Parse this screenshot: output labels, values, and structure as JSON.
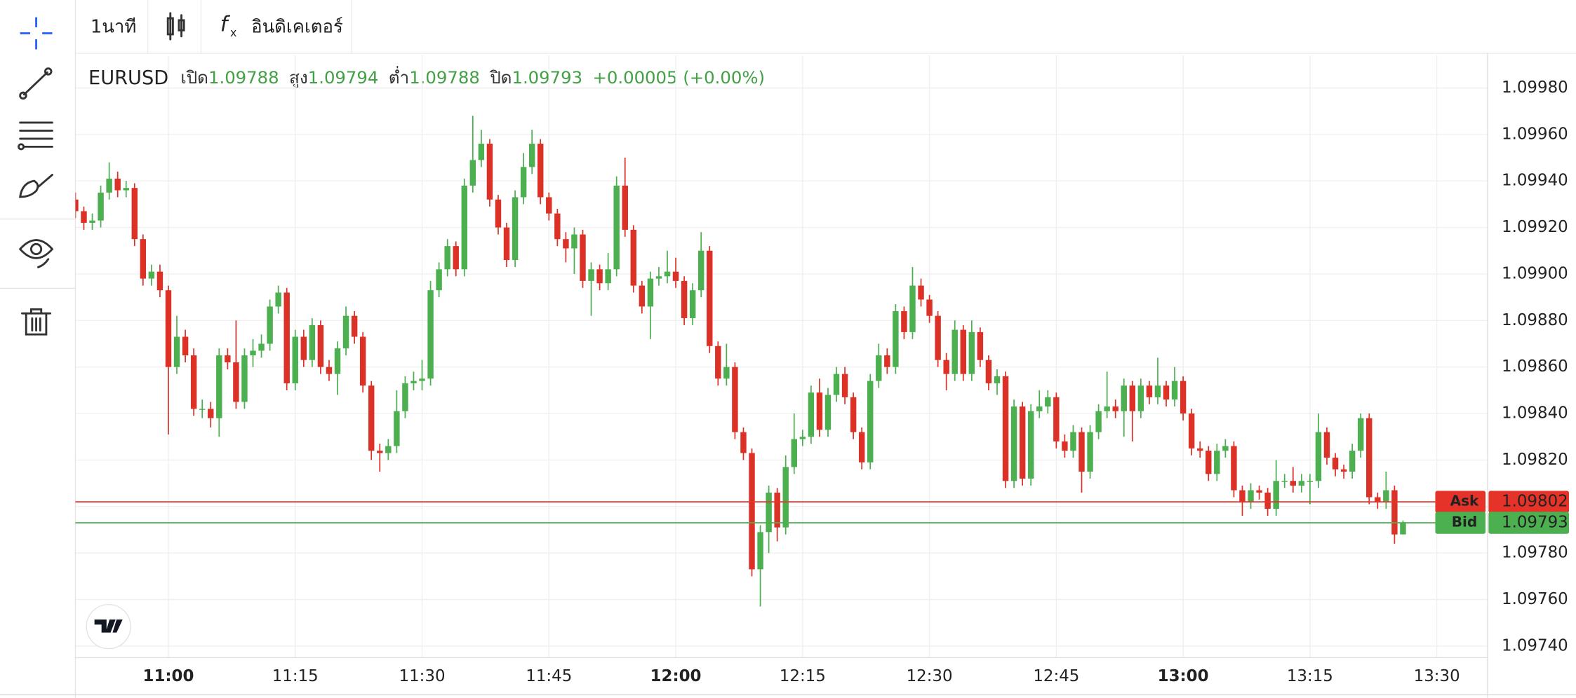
{
  "toolbar": {
    "interval": "1นาที",
    "indicators": "อินดิเคเตอร์"
  },
  "chart_data": {
    "type": "candlestick",
    "symbol": "EURUSD",
    "ohlc_header": {
      "open_label": "เปิด",
      "open": 1.09788,
      "high_label": "สูง",
      "high": 1.09794,
      "low_label": "ต่ำ",
      "low": 1.09788,
      "close_label": "ปิด",
      "close": 1.09793,
      "change": "+0.00005 (+0.00%)"
    },
    "up_color": "#4caf50",
    "down_color": "#dc3126",
    "x": [
      "10:49",
      "10:50",
      "10:51",
      "10:52",
      "10:53",
      "10:54",
      "10:55",
      "10:56",
      "10:57",
      "10:58",
      "10:59",
      "11:00",
      "11:01",
      "11:02",
      "11:03",
      "11:04",
      "11:05",
      "11:06",
      "11:07",
      "11:08",
      "11:09",
      "11:10",
      "11:11",
      "11:12",
      "11:13",
      "11:14",
      "11:15",
      "11:16",
      "11:17",
      "11:18",
      "11:19",
      "11:20",
      "11:21",
      "11:22",
      "11:23",
      "11:24",
      "11:25",
      "11:26",
      "11:27",
      "11:28",
      "11:29",
      "11:30",
      "11:31",
      "11:32",
      "11:33",
      "11:34",
      "11:35",
      "11:36",
      "11:37",
      "11:38",
      "11:39",
      "11:40",
      "11:41",
      "11:42",
      "11:43",
      "11:44",
      "11:45",
      "11:46",
      "11:47",
      "11:48",
      "11:49",
      "11:50",
      "11:51",
      "11:52",
      "11:53",
      "11:54",
      "11:55",
      "11:56",
      "11:57",
      "11:58",
      "11:59",
      "12:00",
      "12:01",
      "12:02",
      "12:03",
      "12:04",
      "12:05",
      "12:06",
      "12:07",
      "12:08",
      "12:09",
      "12:10",
      "12:11",
      "12:12",
      "12:13",
      "12:14",
      "12:15",
      "12:16",
      "12:17",
      "12:18",
      "12:19",
      "12:20",
      "12:21",
      "12:22",
      "12:23",
      "12:24",
      "12:25",
      "12:26",
      "12:27",
      "12:28",
      "12:29",
      "12:30",
      "12:31",
      "12:32",
      "12:33",
      "12:34",
      "12:35",
      "12:36",
      "12:37",
      "12:38",
      "12:39",
      "12:40",
      "12:41",
      "12:42",
      "12:43",
      "12:44",
      "12:45",
      "12:46",
      "12:47",
      "12:48",
      "12:49",
      "12:50",
      "12:51",
      "12:52",
      "12:53",
      "12:54",
      "12:55",
      "12:56",
      "12:57",
      "12:58",
      "12:59",
      "13:00",
      "13:01",
      "13:02",
      "13:03",
      "13:04",
      "13:05",
      "13:06",
      "13:07",
      "13:08",
      "13:09",
      "13:10",
      "13:11",
      "13:12",
      "13:13",
      "13:14",
      "13:15",
      "13:16",
      "13:17",
      "13:18",
      "13:19",
      "13:20",
      "13:21",
      "13:22",
      "13:23",
      "13:24",
      "13:25",
      "13:26"
    ],
    "open": [
      1.09932,
      1.09927,
      1.09922,
      1.09923,
      1.09935,
      1.09941,
      1.09936,
      1.09937,
      1.09915,
      1.09898,
      1.09901,
      1.09893,
      1.0986,
      1.09873,
      1.09865,
      1.09842,
      1.09842,
      1.09838,
      1.09865,
      1.09862,
      1.09845,
      1.09865,
      1.09867,
      1.0987,
      1.09886,
      1.09892,
      1.09853,
      1.09873,
      1.09863,
      1.09878,
      1.0986,
      1.09857,
      1.09868,
      1.09882,
      1.09873,
      1.09852,
      1.09824,
      1.09823,
      1.09826,
      1.09841,
      1.09853,
      1.09854,
      1.09855,
      1.09893,
      1.09902,
      1.09912,
      1.09902,
      1.09938,
      1.09949,
      1.09956,
      1.09932,
      1.0992,
      1.09906,
      1.09933,
      1.09946,
      1.09956,
      1.09933,
      1.09926,
      1.09915,
      1.09911,
      1.09917,
      1.09897,
      1.09902,
      1.09896,
      1.09902,
      1.09938,
      1.09919,
      1.09895,
      1.09886,
      1.09898,
      1.09899,
      1.09901,
      1.09897,
      1.09881,
      1.09893,
      1.0991,
      1.09869,
      1.09855,
      1.0986,
      1.09832,
      1.09823,
      1.09773,
      1.09789,
      1.09806,
      1.09791,
      1.09817,
      1.09829,
      1.0983,
      1.09849,
      1.09833,
      1.09848,
      1.09857,
      1.09847,
      1.09832,
      1.09819,
      1.09854,
      1.09865,
      1.0986,
      1.09884,
      1.09875,
      1.09895,
      1.09889,
      1.09882,
      1.09863,
      1.09857,
      1.09876,
      1.09857,
      1.09875,
      1.09863,
      1.09853,
      1.09856,
      1.09811,
      1.09843,
      1.09812,
      1.09841,
      1.09843,
      1.09847,
      1.09828,
      1.09824,
      1.09832,
      1.09815,
      1.09832,
      1.09841,
      1.09843,
      1.09841,
      1.09852,
      1.09841,
      1.09852,
      1.09847,
      1.09852,
      1.09846,
      1.09854,
      1.0984,
      1.09825,
      1.09824,
      1.09814,
      1.09824,
      1.09826,
      1.09807,
      1.09802,
      1.09807,
      1.09806,
      1.09799,
      1.09811,
      1.09811,
      1.09809,
      1.09811,
      1.09811,
      1.09832,
      1.09821,
      1.09816,
      1.09815,
      1.09824,
      1.09838,
      1.09804,
      1.09802,
      1.09807,
      1.09788
    ],
    "high": [
      1.09935,
      1.09929,
      1.09926,
      1.09938,
      1.09948,
      1.09944,
      1.0994,
      1.09939,
      1.09917,
      1.09904,
      1.09904,
      1.09895,
      1.09882,
      1.09876,
      1.09868,
      1.09846,
      1.09845,
      1.09868,
      1.09868,
      1.0988,
      1.09868,
      1.09872,
      1.09874,
      1.09889,
      1.09895,
      1.09894,
      1.09876,
      1.09876,
      1.09881,
      1.0988,
      1.09863,
      1.09871,
      1.09886,
      1.09884,
      1.09875,
      1.09854,
      1.09827,
      1.09829,
      1.0985,
      1.09856,
      1.09858,
      1.09863,
      1.09897,
      1.09905,
      1.09915,
      1.09914,
      1.09941,
      1.09968,
      1.09962,
      1.09958,
      1.09934,
      1.09922,
      1.09936,
      1.09952,
      1.09962,
      1.09958,
      1.09935,
      1.09928,
      1.09918,
      1.0992,
      1.09919,
      1.09905,
      1.09904,
      1.09909,
      1.09942,
      1.0995,
      1.09921,
      1.09897,
      1.09901,
      1.09903,
      1.0991,
      1.09907,
      1.09899,
      1.09896,
      1.09918,
      1.09912,
      1.09871,
      1.0987,
      1.09862,
      1.09834,
      1.09825,
      1.09792,
      1.09809,
      1.09808,
      1.09822,
      1.0984,
      1.09833,
      1.09852,
      1.09855,
      1.09851,
      1.0986,
      1.0986,
      1.09849,
      1.09834,
      1.09857,
      1.0987,
      1.09868,
      1.09887,
      1.09886,
      1.09903,
      1.09898,
      1.09891,
      1.09884,
      1.09866,
      1.0988,
      1.09878,
      1.0988,
      1.09877,
      1.09865,
      1.09859,
      1.09858,
      1.09846,
      1.09845,
      1.09844,
      1.0985,
      1.0985,
      1.09849,
      1.09831,
      1.09835,
      1.09834,
      1.09835,
      1.09844,
      1.09858,
      1.09846,
      1.09855,
      1.09854,
      1.09855,
      1.09854,
      1.09864,
      1.09854,
      1.0986,
      1.09856,
      1.09842,
      1.09828,
      1.09826,
      1.09827,
      1.09829,
      1.09828,
      1.09809,
      1.0981,
      1.09809,
      1.09808,
      1.0982,
      1.09814,
      1.09817,
      1.09814,
      1.09814,
      1.0984,
      1.09834,
      1.09823,
      1.09818,
      1.09827,
      1.0984,
      1.0984,
      1.09806,
      1.09815,
      1.09809,
      1.09794
    ],
    "low": [
      1.09924,
      1.09919,
      1.09919,
      1.0992,
      1.09932,
      1.09933,
      1.09933,
      1.09912,
      1.09895,
      1.09895,
      1.0989,
      1.09831,
      1.09857,
      1.09862,
      1.09839,
      1.09838,
      1.09834,
      1.0983,
      1.09859,
      1.09842,
      1.09842,
      1.0986,
      1.09864,
      1.09867,
      1.09883,
      1.0985,
      1.0985,
      1.0986,
      1.0986,
      1.09857,
      1.09854,
      1.09848,
      1.09865,
      1.0987,
      1.09849,
      1.0982,
      1.09815,
      1.0982,
      1.09823,
      1.09838,
      1.0985,
      1.0985,
      1.09852,
      1.0989,
      1.09899,
      1.09899,
      1.09899,
      1.09935,
      1.09946,
      1.09929,
      1.09917,
      1.09903,
      1.09903,
      1.0993,
      1.09943,
      1.0993,
      1.09923,
      1.09912,
      1.09905,
      1.099,
      1.09894,
      1.09882,
      1.09893,
      1.09893,
      1.09899,
      1.09916,
      1.09892,
      1.09883,
      1.09872,
      1.09895,
      1.09896,
      1.09894,
      1.09878,
      1.09878,
      1.0989,
      1.09866,
      1.09852,
      1.09852,
      1.09829,
      1.0982,
      1.0977,
      1.09757,
      1.0978,
      1.09785,
      1.09788,
      1.09814,
      1.09826,
      1.09827,
      1.0983,
      1.0983,
      1.09845,
      1.09844,
      1.09829,
      1.09816,
      1.09816,
      1.09851,
      1.09857,
      1.09857,
      1.09872,
      1.09872,
      1.09886,
      1.09879,
      1.0986,
      1.0985,
      1.09854,
      1.09854,
      1.09854,
      1.0986,
      1.0985,
      1.09848,
      1.09808,
      1.09808,
      1.09809,
      1.09809,
      1.09838,
      1.0984,
      1.09825,
      1.09821,
      1.09821,
      1.09806,
      1.09812,
      1.09829,
      1.09838,
      1.09838,
      1.0983,
      1.09828,
      1.09838,
      1.09844,
      1.09844,
      1.09843,
      1.09843,
      1.09837,
      1.09822,
      1.09821,
      1.09811,
      1.09811,
      1.09821,
      1.09804,
      1.09796,
      1.09799,
      1.09803,
      1.09796,
      1.09796,
      1.09808,
      1.09806,
      1.09806,
      1.09801,
      1.09808,
      1.09818,
      1.09813,
      1.09812,
      1.09812,
      1.09821,
      1.09801,
      1.09799,
      1.09799,
      1.09784,
      1.09788
    ],
    "close": [
      1.09927,
      1.09922,
      1.09923,
      1.09935,
      1.09941,
      1.09936,
      1.09937,
      1.09915,
      1.09898,
      1.09901,
      1.09893,
      1.0986,
      1.09873,
      1.09865,
      1.09842,
      1.09842,
      1.09838,
      1.09865,
      1.09862,
      1.09845,
      1.09865,
      1.09867,
      1.0987,
      1.09886,
      1.09892,
      1.09853,
      1.09873,
      1.09863,
      1.09878,
      1.0986,
      1.09857,
      1.09868,
      1.09882,
      1.09873,
      1.09852,
      1.09824,
      1.09823,
      1.09826,
      1.09841,
      1.09853,
      1.09854,
      1.09855,
      1.09893,
      1.09902,
      1.09912,
      1.09902,
      1.09938,
      1.09949,
      1.09956,
      1.09932,
      1.0992,
      1.09906,
      1.09933,
      1.09946,
      1.09956,
      1.09933,
      1.09926,
      1.09915,
      1.09911,
      1.09917,
      1.09897,
      1.09902,
      1.09896,
      1.09902,
      1.09938,
      1.09919,
      1.09895,
      1.09886,
      1.09898,
      1.09899,
      1.09901,
      1.09897,
      1.09881,
      1.09893,
      1.0991,
      1.09869,
      1.09855,
      1.0986,
      1.09832,
      1.09823,
      1.09773,
      1.09789,
      1.09806,
      1.09791,
      1.09817,
      1.09829,
      1.0983,
      1.09849,
      1.09833,
      1.09848,
      1.09857,
      1.09847,
      1.09832,
      1.09819,
      1.09854,
      1.09865,
      1.0986,
      1.09884,
      1.09875,
      1.09895,
      1.09889,
      1.09882,
      1.09863,
      1.09857,
      1.09876,
      1.09857,
      1.09875,
      1.09863,
      1.09853,
      1.09856,
      1.09811,
      1.09843,
      1.09812,
      1.09841,
      1.09843,
      1.09847,
      1.09828,
      1.09824,
      1.09832,
      1.09815,
      1.09832,
      1.09841,
      1.09843,
      1.09841,
      1.09852,
      1.09841,
      1.09852,
      1.09847,
      1.09852,
      1.09846,
      1.09854,
      1.0984,
      1.09825,
      1.09824,
      1.09814,
      1.09824,
      1.09826,
      1.09807,
      1.09802,
      1.09807,
      1.09806,
      1.09799,
      1.09811,
      1.09811,
      1.09809,
      1.09811,
      1.09811,
      1.09832,
      1.09821,
      1.09816,
      1.09815,
      1.09824,
      1.09838,
      1.09804,
      1.09802,
      1.09807,
      1.09788,
      1.09793
    ],
    "xlim": [
      "10:49",
      "13:36"
    ],
    "xticks": [
      "11:00",
      "11:15",
      "11:30",
      "11:45",
      "12:00",
      "12:15",
      "12:30",
      "12:45",
      "13:00",
      "13:15",
      "13:30"
    ],
    "ylim": [
      1.09735,
      1.09994
    ],
    "yticks": [
      {
        "value": 1.0974,
        "label": "1.09740"
      },
      {
        "value": 1.0976,
        "label": "1.09760"
      },
      {
        "value": 1.0978,
        "label": "1.09780"
      },
      {
        "value": 1.098,
        "label": "1.09800"
      },
      {
        "value": 1.0982,
        "label": "1.09820"
      },
      {
        "value": 1.0984,
        "label": "1.09840"
      },
      {
        "value": 1.0986,
        "label": "1.09860"
      },
      {
        "value": 1.0988,
        "label": "1.09880"
      },
      {
        "value": 1.099,
        "label": "1.09900"
      },
      {
        "value": 1.0992,
        "label": "1.09920"
      },
      {
        "value": 1.0994,
        "label": "1.09940"
      },
      {
        "value": 1.0996,
        "label": "1.09960"
      },
      {
        "value": 1.0998,
        "label": "1.09980"
      }
    ],
    "grid": true,
    "ask": {
      "label": "Ask",
      "value": 1.09802,
      "color": "#e5332a"
    },
    "bid": {
      "label": "Bid",
      "value": 1.09793,
      "color": "#4caf50"
    }
  }
}
